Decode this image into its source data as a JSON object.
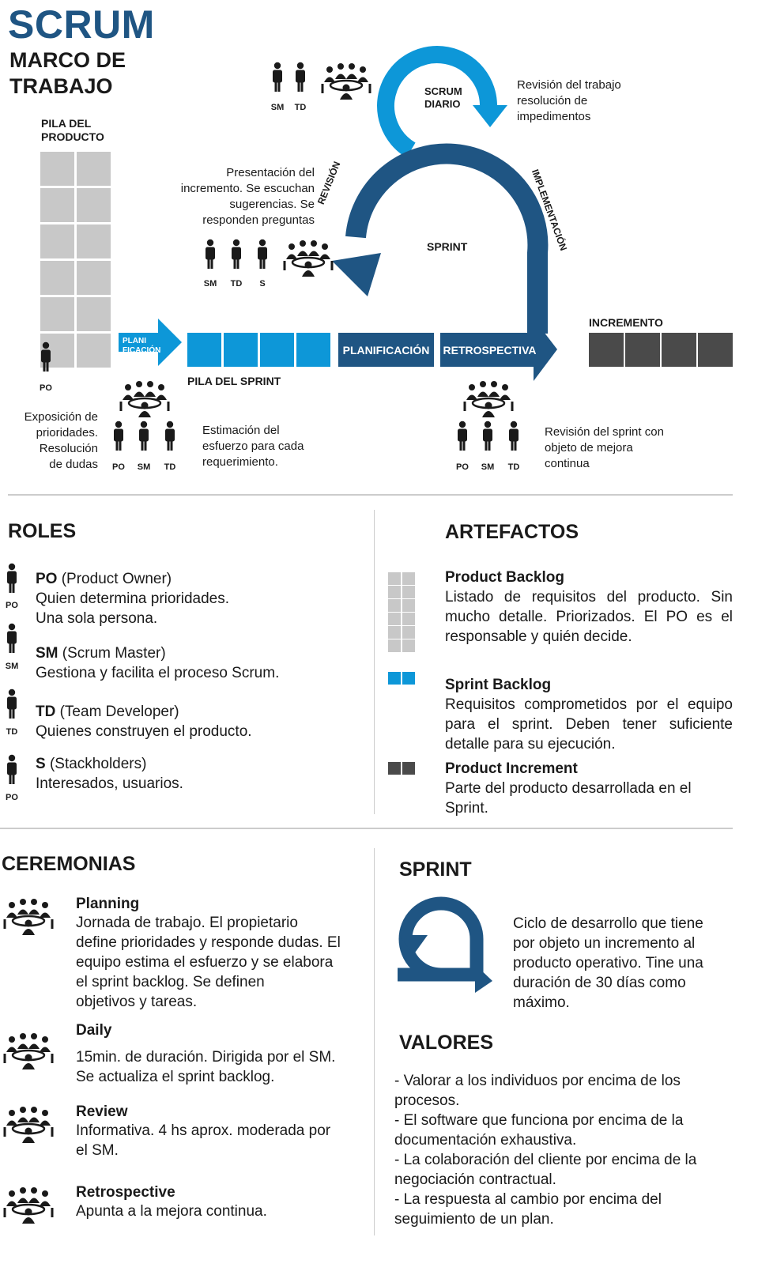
{
  "header": {
    "title": "SCRUM",
    "subtitle_line1": "MARCO DE",
    "subtitle_line2": "TRABAJO"
  },
  "diagram": {
    "product_backlog_label_1": "PILA DEL",
    "product_backlog_label_2": "PRODUCTO",
    "daily_scrum_1": "SCRUM",
    "daily_scrum_2": "DIARIO",
    "daily_note": [
      "Revisión del trabajo",
      "resolución de",
      "impedimentos"
    ],
    "review_note": [
      "Presentación del",
      "incremento. Se escuchan",
      "sugerencias. Se",
      "responden preguntas"
    ],
    "revision_label": "REVISIÓN",
    "implementation_label": "IMPLEMENTACIÓN",
    "sprint_label": "SPRINT",
    "plan_arrow_1": "PLANI",
    "plan_arrow_2": "FICACIÓN",
    "sprint_backlog_label": "PILA DEL SPRINT",
    "planning_bar": "PLANIFICACIÓN",
    "retro_bar": "RETROSPECTIVA",
    "increment_label": "INCREMENTO",
    "po_note": [
      "Exposición de",
      "prioridades.",
      "Resolución",
      "de dudas"
    ],
    "estimate_note": [
      "Estimación del",
      "esfuerzo para cada",
      "requerimiento."
    ],
    "retro_note": [
      "Revisión del sprint con",
      "objeto de mejora",
      "continua"
    ],
    "codes": {
      "po": "PO",
      "sm": "SM",
      "td": "TD",
      "s": "S"
    }
  },
  "roles": {
    "heading": "ROLES",
    "items": [
      {
        "code": "PO",
        "name": " (Product Owner)",
        "desc1": "Quien determina  prioridades.",
        "desc2": "Una sola persona.",
        "icon": "PO"
      },
      {
        "code": "SM",
        "name": " (Scrum Master)",
        "desc1": "Gestiona y facilita el proceso Scrum.",
        "desc2": "",
        "icon": "SM"
      },
      {
        "code": "TD",
        "name": " (Team Developer)",
        "desc1": "Quienes construyen el producto.",
        "desc2": "",
        "icon": "TD"
      },
      {
        "code": "S",
        "name": " (Stackholders)",
        "desc1": "Interesados, usuarios.",
        "desc2": "",
        "icon": "PO"
      }
    ]
  },
  "artefacts": {
    "heading": "ARTEFACTOS",
    "items": [
      {
        "title": "Product Backlog",
        "desc": "Listado de requisitos del producto. Sin mucho detalle. Priorizados. El PO es el responsable y quién decide."
      },
      {
        "title": "Sprint Backlog",
        "desc": "Requisitos comprometidos por el equipo para el sprint. Deben tener suficiente detalle para su ejecución."
      },
      {
        "title": "Product Increment",
        "desc": "Parte del producto desarrollada en el Sprint."
      }
    ]
  },
  "ceremonies": {
    "heading": "CEREMONIAS",
    "items": [
      {
        "title": "Planning",
        "desc": [
          "Jornada de trabajo. El propietario",
          "define prioridades y responde dudas.  El",
          "equipo estima el esfuerzo y se elabora",
          "el sprint backlog. Se definen",
          "objetivos y tareas."
        ]
      },
      {
        "title": "Daily",
        "desc": [
          "15min. de duración. Dirigida por el SM.",
          "Se actualiza el sprint backlog."
        ]
      },
      {
        "title": "Review",
        "desc": [
          "Informativa. 4 hs aprox. moderada por",
          "el SM."
        ]
      },
      {
        "title": "Retrospective",
        "desc": [
          "Apunta a la mejora continua."
        ]
      }
    ]
  },
  "sprint": {
    "heading": "SPRINT",
    "desc": [
      "Ciclo de desarrollo que tiene",
      "por objeto un incremento al",
      "producto operativo. Tine una",
      "duración de 30 días como",
      "máximo."
    ]
  },
  "values": {
    "heading": "VALORES",
    "lines": [
      "- Valorar a los individuos por encima de los",
      "procesos.",
      "- El software que funciona por encima de la",
      "documentación exhaustiva.",
      "- La colaboración del cliente por encima de la",
      "negociación contractual.",
      "- La respuesta al cambio por encima del",
      "seguimiento de un plan."
    ]
  },
  "colors": {
    "brand_dark": "#1f5583",
    "brand_light": "#0d97d8",
    "gray": "#c8c8c8",
    "dark": "#4a4a4a"
  }
}
